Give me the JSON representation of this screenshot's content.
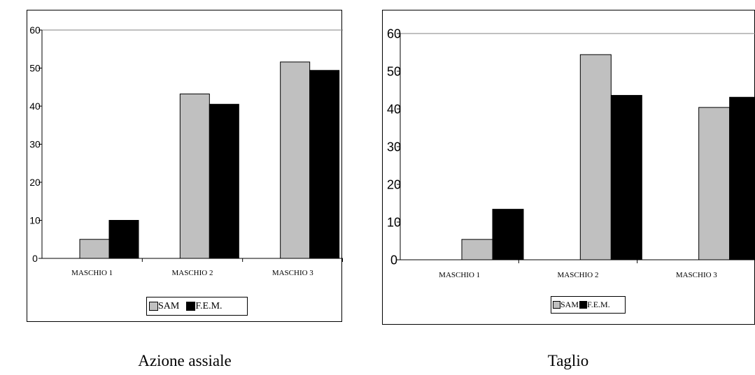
{
  "chart_data": [
    {
      "type": "bar",
      "caption": "Azione assiale",
      "categories": [
        "MASCHIO 1",
        "MASCHIO 2",
        "MASCHIO 3"
      ],
      "series": [
        {
          "name": "SAM",
          "values": [
            5,
            43.2,
            51.6
          ],
          "color": "#c0c0c0"
        },
        {
          "name": "F.E.M.",
          "values": [
            10,
            40.5,
            49.4
          ],
          "color": "#000000"
        }
      ],
      "y_ticks": [
        "0",
        "10",
        "20",
        "30",
        "40",
        "50",
        "60"
      ],
      "ylim": [
        0,
        60
      ],
      "grid": false,
      "legend_position": "bottom"
    },
    {
      "type": "bar",
      "caption": "Taglio",
      "categories": [
        "MASCHIO 1",
        "MASCHIO 2",
        "MASCHIO 3"
      ],
      "series": [
        {
          "name": "SAM",
          "values": [
            5.4,
            54.4,
            40.4
          ],
          "color": "#c0c0c0"
        },
        {
          "name": "F.E.M.",
          "values": [
            13.4,
            43.6,
            43.1
          ],
          "color": "#000000"
        }
      ],
      "y_ticks": [
        "0",
        "10",
        "20",
        "30",
        "40",
        "50",
        "60"
      ],
      "ylim": [
        0,
        60
      ],
      "grid": false,
      "legend_position": "bottom"
    }
  ]
}
